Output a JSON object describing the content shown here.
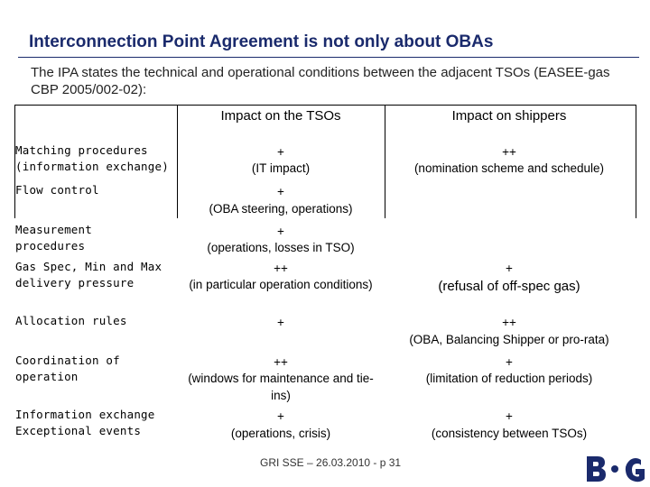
{
  "title": "Interconnection Point Agreement is not only about OBAs",
  "intro": "The IPA states the technical and operational conditions between the adjacent TSOs (EASEE-gas CBP 2005/002-02):",
  "headers": {
    "tso": "Impact on the TSOs",
    "shippers": "Impact on shippers"
  },
  "rows": [
    {
      "label1": "Matching procedures",
      "label2": "(information exchange)",
      "tso1": "+",
      "tso2": "(IT impact)",
      "sh1": "++",
      "sh2": "(nomination scheme and schedule)"
    },
    {
      "label1": "Flow control",
      "label2": "",
      "tso1": "+",
      "tso2": "(OBA steering, operations)",
      "sh1": "",
      "sh2": ""
    },
    {
      "label1": "Measurement",
      "label2": "procedures",
      "tso1": "+",
      "tso2": "(operations, losses in TSO)",
      "sh1": "",
      "sh2": ""
    },
    {
      "label1": "Gas Spec, Min and Max",
      "label2": "delivery pressure",
      "tso1": "++",
      "tso2": "(in particular operation conditions)",
      "sh1": "+",
      "sh2": "(refusal of off-spec gas)"
    },
    {
      "label1": "Allocation rules",
      "label2": "",
      "tso1": "+",
      "tso2": "",
      "sh1": "++",
      "sh2": "(OBA, Balancing Shipper or pro-rata)"
    },
    {
      "label1": "Coordination of",
      "label2": "operation",
      "tso1": "++",
      "tso2": "(windows for maintenance and tie-",
      "tso3": "ins)",
      "sh1": "+",
      "sh2": "(limitation of reduction periods)"
    },
    {
      "label1": "Information exchange",
      "label2": "Exceptional events",
      "tso1": "+",
      "tso2": "(operations, crisis)",
      "sh1": "+",
      "sh2": "(consistency between TSOs)"
    }
  ],
  "footer": "GRI SSE – 26.03.2010 - p 31"
}
